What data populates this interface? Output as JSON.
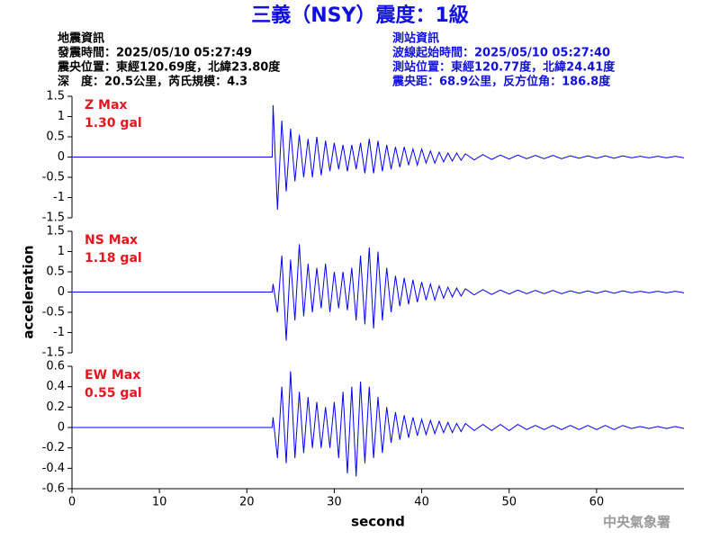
{
  "header": {
    "title": "三義（NSY）震度：1級",
    "left": [
      "地震資訊",
      "發震時間：2025/05/10 05:27:49",
      "震央位置：東經120.69度，北緯23.80度",
      "深　度：20.5公里，芮氏規模：4.3"
    ],
    "right": [
      "測站資訊",
      "波線起始時間：2025/05/10 05:27:40",
      "測站位置：東經120.77度，北緯24.41度",
      "震央距：68.9公里，反方位角：186.8度"
    ]
  },
  "footer": "中央氣象署",
  "chart_data": [
    {
      "type": "line",
      "color": "#0000ff",
      "annotations": [
        "Z Max",
        "1.30 gal"
      ],
      "xlim": [
        0,
        70
      ],
      "ylim": [
        -1.5,
        1.5
      ],
      "yticks": [
        1.5,
        1,
        0.5,
        0,
        -0.5,
        -1,
        -1.5
      ],
      "x": [
        0,
        22.9,
        23,
        23.5,
        24,
        24.5,
        25,
        25.5,
        26,
        26.5,
        27,
        27.5,
        28,
        28.5,
        29,
        29.5,
        30,
        30.5,
        31,
        31.5,
        32,
        32.5,
        33,
        33.5,
        34,
        34.5,
        35,
        35.5,
        36,
        36.5,
        37,
        37.5,
        38,
        38.5,
        39,
        39.5,
        40,
        40.5,
        41,
        41.5,
        42,
        42.5,
        43,
        43.5,
        44,
        44.5,
        45,
        46,
        47,
        48,
        49,
        50,
        51,
        52,
        53,
        54,
        55,
        56,
        57,
        58,
        59,
        60,
        61,
        62,
        63,
        64,
        65,
        66,
        67,
        68,
        69,
        70
      ],
      "values": [
        0,
        0,
        1.28,
        -1.3,
        0.9,
        -0.85,
        0.7,
        -0.6,
        0.55,
        -0.5,
        0.45,
        -0.5,
        0.5,
        -0.45,
        0.4,
        -0.35,
        0.35,
        -0.3,
        0.3,
        -0.35,
        0.3,
        -0.3,
        0.35,
        -0.4,
        0.45,
        -0.4,
        0.4,
        -0.35,
        0.3,
        -0.3,
        0.25,
        -0.25,
        0.25,
        -0.2,
        0.2,
        -0.2,
        0.2,
        -0.15,
        0.15,
        -0.15,
        0.12,
        -0.12,
        0.1,
        -0.1,
        0.1,
        -0.08,
        0.08,
        -0.07,
        0.06,
        -0.06,
        0.05,
        -0.05,
        0.05,
        -0.04,
        0.04,
        -0.04,
        0.04,
        -0.04,
        0.03,
        -0.03,
        0.03,
        -0.03,
        0.03,
        -0.03,
        0.03,
        -0.02,
        0.02,
        -0.02,
        0.02,
        -0.02,
        0.02,
        -0.02
      ]
    },
    {
      "type": "line",
      "color": "#0000ff",
      "annotations": [
        "NS Max",
        "1.18 gal"
      ],
      "ylabel": "acceleration",
      "xlim": [
        0,
        70
      ],
      "ylim": [
        -1.5,
        1.5
      ],
      "yticks": [
        1.5,
        1,
        0.5,
        0,
        -0.5,
        -1,
        -1.5
      ],
      "x": [
        0,
        22.9,
        23,
        23.5,
        24,
        24.5,
        25,
        25.5,
        26,
        26.5,
        27,
        27.5,
        28,
        28.5,
        29,
        29.5,
        30,
        30.5,
        31,
        31.5,
        32,
        32.5,
        33,
        33.5,
        34,
        34.5,
        35,
        35.5,
        36,
        36.5,
        37,
        37.5,
        38,
        38.5,
        39,
        39.5,
        40,
        40.5,
        41,
        41.5,
        42,
        42.5,
        43,
        43.5,
        44,
        44.5,
        45,
        46,
        47,
        48,
        49,
        50,
        51,
        52,
        53,
        54,
        55,
        56,
        57,
        58,
        59,
        60,
        61,
        62,
        63,
        64,
        65,
        66,
        67,
        68,
        69,
        70
      ],
      "values": [
        0,
        0,
        0.2,
        -0.5,
        0.9,
        -1.2,
        0.8,
        -0.7,
        1.18,
        -0.6,
        0.7,
        -0.5,
        0.6,
        -0.4,
        0.7,
        -0.5,
        0.5,
        -0.4,
        0.5,
        -0.45,
        0.6,
        -0.7,
        0.9,
        -0.8,
        1.1,
        -0.9,
        1.0,
        -0.7,
        0.6,
        -0.5,
        0.4,
        -0.35,
        0.35,
        -0.3,
        0.3,
        -0.25,
        0.25,
        -0.2,
        0.2,
        -0.2,
        0.15,
        -0.15,
        0.12,
        -0.12,
        0.1,
        -0.1,
        0.08,
        -0.07,
        0.06,
        -0.06,
        0.05,
        -0.05,
        0.05,
        -0.04,
        0.04,
        -0.04,
        0.04,
        -0.04,
        0.03,
        -0.03,
        0.03,
        -0.03,
        0.03,
        -0.03,
        0.03,
        -0.02,
        0.02,
        -0.02,
        0.02,
        -0.02,
        0.02,
        -0.02
      ]
    },
    {
      "type": "line",
      "color": "#0000ff",
      "annotations": [
        "EW Max",
        "0.55 gal"
      ],
      "xlabel": "second",
      "xlim": [
        0,
        70
      ],
      "xticks": [
        0,
        10,
        20,
        30,
        40,
        50,
        60
      ],
      "ylim": [
        -0.6,
        0.6
      ],
      "yticks": [
        0.6,
        0.4,
        0.2,
        0,
        -0.2,
        -0.4,
        -0.6
      ],
      "x": [
        0,
        22.9,
        23,
        23.5,
        24,
        24.5,
        25,
        25.5,
        26,
        26.5,
        27,
        27.5,
        28,
        28.5,
        29,
        29.5,
        30,
        30.5,
        31,
        31.5,
        32,
        32.5,
        33,
        33.5,
        34,
        34.5,
        35,
        35.5,
        36,
        36.5,
        37,
        37.5,
        38,
        38.5,
        39,
        39.5,
        40,
        40.5,
        41,
        41.5,
        42,
        42.5,
        43,
        43.5,
        44,
        44.5,
        45,
        46,
        47,
        48,
        49,
        50,
        51,
        52,
        53,
        54,
        55,
        56,
        57,
        58,
        59,
        60,
        61,
        62,
        63,
        64,
        65,
        66,
        67,
        68,
        69,
        70
      ],
      "values": [
        0,
        0,
        0.1,
        -0.3,
        0.4,
        -0.35,
        0.55,
        -0.3,
        0.35,
        -0.25,
        0.3,
        -0.2,
        0.25,
        -0.2,
        0.2,
        -0.2,
        0.25,
        -0.3,
        0.35,
        -0.45,
        0.4,
        -0.48,
        0.45,
        -0.35,
        0.4,
        -0.3,
        0.3,
        -0.25,
        0.2,
        -0.15,
        0.15,
        -0.12,
        0.12,
        -0.1,
        0.1,
        -0.08,
        0.08,
        -0.07,
        0.07,
        -0.06,
        0.06,
        -0.05,
        0.05,
        -0.05,
        0.04,
        -0.04,
        0.04,
        -0.03,
        0.03,
        -0.03,
        0.03,
        -0.03,
        0.03,
        -0.02,
        0.02,
        -0.02,
        0.02,
        -0.02,
        0.02,
        -0.02,
        0.02,
        -0.02,
        0.02,
        -0.02,
        0.02,
        -0.01,
        0.01,
        -0.01,
        0.01,
        -0.01,
        0.01,
        -0.01
      ]
    }
  ]
}
